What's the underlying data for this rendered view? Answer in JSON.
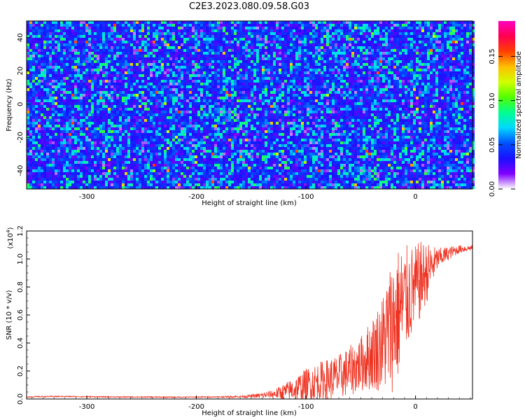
{
  "title": "C2E3.2023.080.09.58.G03",
  "colors": {
    "snr_line": "#ee3322",
    "axis": "#000000"
  },
  "chart_data": [
    {
      "type": "heatmap",
      "title": "C2E3.2023.080.09.58.G03",
      "xlabel": "Height of straight line (km)",
      "ylabel": "Frequency (Hz)",
      "xlim": [
        -355,
        52
      ],
      "ylim": [
        -51,
        50
      ],
      "x_ticks": [
        "-300",
        "-200",
        "-100",
        "0"
      ],
      "x_tick_values": [
        -300,
        -200,
        -100,
        0
      ],
      "y_ticks": [
        "40",
        "20",
        "0",
        "-20",
        "-40"
      ],
      "y_tick_values": [
        40,
        20,
        0,
        -20,
        -40
      ],
      "colorbar": {
        "label": "Normalized spectral amplitude",
        "range": [
          0,
          0.19
        ],
        "ticks": [
          "0.00",
          "0.05",
          "0.10",
          "0.15"
        ],
        "tick_values": [
          0,
          0.05,
          0.1,
          0.15
        ],
        "colormap": [
          "#ffffff",
          "#7f00ff",
          "#1a10ff",
          "#0050ff",
          "#00d8ff",
          "#00ff90",
          "#50ff00",
          "#d0ff00",
          "#ffc000",
          "#ff4000",
          "#ff0050",
          "#ff00c0"
        ]
      }
    },
    {
      "type": "line",
      "xlabel": "Height of straight line (km)",
      "ylabel": "SNR (10 * v/v)",
      "y_scale_label_base": "(x10",
      "y_scale_label_exp": "4",
      "y_scale_label_close": ")",
      "xlim": [
        -355,
        52
      ],
      "ylim": [
        0,
        1.2
      ],
      "x_ticks": [
        "-300",
        "-200",
        "-100",
        "0"
      ],
      "x_tick_values": [
        -300,
        -200,
        -100,
        0
      ],
      "y_ticks": [
        "0.0",
        "0.2",
        "0.4",
        "0.6",
        "0.8",
        "1.0",
        "1.2"
      ],
      "y_tick_values": [
        0,
        0.2,
        0.4,
        0.6,
        0.8,
        1.0,
        1.2
      ],
      "series": [
        {
          "x": [
            -355,
            -340,
            -320,
            -300,
            -280,
            -260,
            -240,
            -220,
            -200,
            -180,
            -160,
            -150,
            -140,
            -130,
            -120,
            -110,
            -100,
            -90,
            -80,
            -70,
            -60,
            -50,
            -40,
            -30,
            -25,
            -20,
            -15,
            -10,
            -5,
            0,
            5,
            10,
            15,
            20,
            30,
            40,
            52
          ],
          "y": [
            0.015,
            0.017,
            0.018,
            0.016,
            0.015,
            0.014,
            0.014,
            0.013,
            0.014,
            0.015,
            0.017,
            0.02,
            0.025,
            0.035,
            0.05,
            0.07,
            0.1,
            0.12,
            0.14,
            0.16,
            0.2,
            0.25,
            0.32,
            0.4,
            0.48,
            0.55,
            0.62,
            0.7,
            0.75,
            0.8,
            0.85,
            0.9,
            0.95,
            1.0,
            1.04,
            1.07,
            1.08
          ],
          "spread": [
            0.004,
            0.005,
            0.004,
            0.004,
            0.004,
            0.004,
            0.004,
            0.004,
            0.004,
            0.005,
            0.008,
            0.012,
            0.02,
            0.03,
            0.06,
            0.09,
            0.12,
            0.14,
            0.15,
            0.16,
            0.18,
            0.2,
            0.26,
            0.35,
            0.45,
            0.5,
            0.48,
            0.4,
            0.35,
            0.3,
            0.28,
            0.22,
            0.15,
            0.08,
            0.05,
            0.03,
            0.02
          ]
        }
      ]
    }
  ]
}
